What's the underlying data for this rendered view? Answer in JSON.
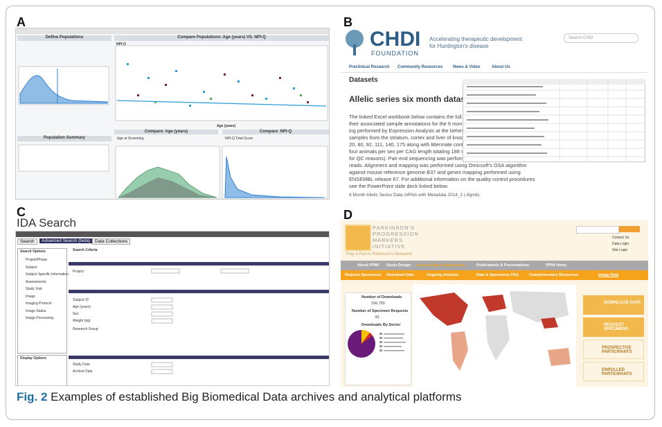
{
  "caption": {
    "label": "Fig. 2",
    "text": "Examples of established Big Biomedical Data archives and analytical platforms"
  },
  "panel_a": {
    "label": "A",
    "define": "Define Populations",
    "compare": "Compare Populations: Age (years) VS. NPI-Q",
    "summary": "Population Summary",
    "x_label": "Age (years)",
    "y_label": "NPI-Q",
    "compare_left": "Compare: Age (years)",
    "compare_right": "Compare: NPI-Q",
    "select_left": "Age at Screening",
    "select_right": "NPI-Q Total Score"
  },
  "panel_b": {
    "label": "B",
    "org": "CHDI",
    "org_sub": "FOUNDATION",
    "tagline": [
      "Accelerating therapeutic development",
      "for Huntington's disease"
    ],
    "search": "Search CHDI",
    "nav": [
      "Preclinical Research",
      "Community Resources",
      "News & Video",
      "About Us"
    ],
    "heading": "Datasets",
    "title": "Allelic series six month dataset",
    "body": [
      "The linked Excel workbook below contains the full",
      "their associated sample annotations for the 6 mon",
      "ing performed by Expression Analysis at the behest",
      "samples from the striatum, cortex and liver of knoc",
      "20, 80, 92, 111, 140, 175 along with littermate contro",
      "four animals per sex per CAG length totaling 188 sa",
      "for QC reasons). Pair-end sequencing was performed",
      "reads. Alignment and mapping was performed using Omicsoft's OSA algorithm",
      "against mouse reference genome B37 and genes mapping performed using",
      "ENSEMBL release 67. For additional information on the quality control procedures",
      "see the PowerPoint slide deck linked below."
    ],
    "link": "6 Month Allelic Series Data mRNA with Metadata 2014_2 (-8gmb)"
  },
  "panel_c": {
    "label": "C",
    "title": "IDA Search",
    "tabs": [
      "Search",
      "Advanced Search (beta)",
      "Data Collections"
    ],
    "search_options": "Search Options",
    "search_criteria": "Search Criteria",
    "display_options": "Display Options",
    "menu": [
      "Project/Phase",
      "Subject",
      "Subject Specific Information",
      "Assessments",
      "Study Visit",
      "Image",
      "Imaging Protocol",
      "Image Status",
      "Image Processing"
    ],
    "fields": [
      "Project:",
      "Subject ID",
      "Age (years)",
      "Sex",
      "Weight (kg)",
      "Research Group",
      "Study Date",
      "Archive Date"
    ]
  },
  "panel_d": {
    "label": "D",
    "title": [
      "PARKINSON'S",
      "PROGRESSION",
      "MARKERS",
      "INITIATIVE"
    ],
    "slogan": "Play a Part in Parkinson's Research",
    "links": [
      "Contact Us",
      "Data Login",
      "Site Login"
    ],
    "nav": [
      "About PPMI",
      "Study Design",
      "Access Data & Specimens",
      "Publications & Presentations",
      "PPMI Home"
    ],
    "subnav": [
      "Request Specimens",
      "Download Data",
      "Ongoing Analysis",
      "Data & Specimens FAQ",
      "Complementary Resources",
      "Image Data"
    ],
    "downloads_label": "Number of Downloads",
    "downloads": "156,755",
    "requests_label": "Number of Specimen Requests",
    "requests": "81",
    "sector_label": "Downloads By Sector",
    "buttons": [
      "DOWNLOAD DATA",
      "REQUEST SPECIMENS",
      "PROSPECTIVE PARTICIPANTS",
      "ENROLLED PARTICIPANTS"
    ]
  }
}
